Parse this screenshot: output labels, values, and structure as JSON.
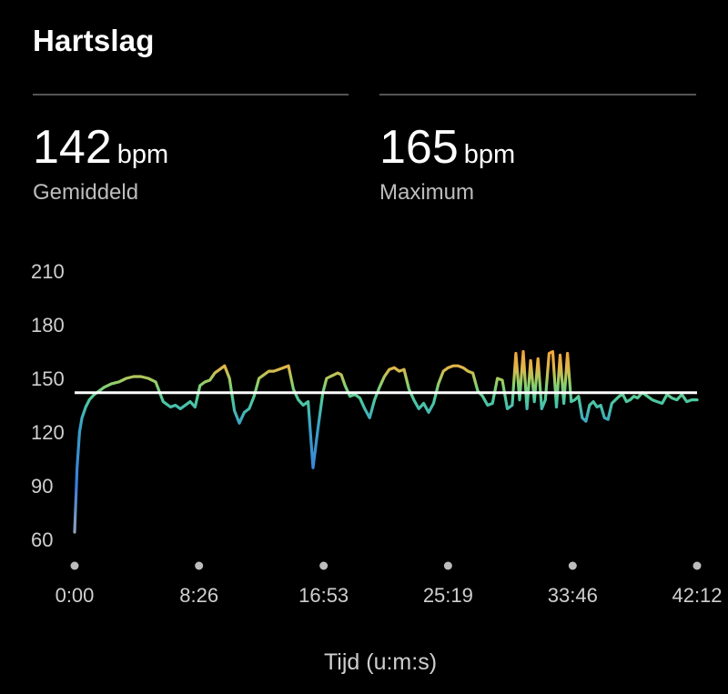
{
  "header": {
    "title": "Hartslag"
  },
  "stats": [
    {
      "value": "142",
      "unit": "bpm",
      "label": "Gemiddeld"
    },
    {
      "value": "165",
      "unit": "bpm",
      "label": "Maximum"
    }
  ],
  "colors": {
    "background": "#000000",
    "average_line": "#ffffff",
    "low": "#3b7ddd",
    "mid": "#4ec9a0",
    "high": "#f3a33c"
  },
  "chart_data": {
    "type": "line",
    "title": "",
    "xlabel": "Tijd (u:m:s)",
    "ylabel": "",
    "ylim": [
      60,
      210
    ],
    "yticks": [
      "60",
      "90",
      "120",
      "150",
      "180",
      "210"
    ],
    "xlim": [
      "0:00",
      "42:12"
    ],
    "xticks": [
      "0:00",
      "8:26",
      "16:53",
      "25:19",
      "33:46",
      "42:12"
    ],
    "grid": false,
    "average_line": 142,
    "series": [
      {
        "x": [
          "0:00",
          "0:10",
          "0:20",
          "0:30",
          "0:45",
          "1:00",
          "1:20",
          "1:40",
          "2:00",
          "2:30",
          "3:00",
          "3:30",
          "4:00",
          "4:30",
          "5:00",
          "5:30",
          "6:00",
          "6:30",
          "6:50",
          "7:10",
          "7:30",
          "7:50",
          "8:10",
          "8:30",
          "8:50",
          "9:10",
          "9:30",
          "9:50",
          "10:10",
          "10:30",
          "10:50",
          "11:10",
          "11:30",
          "11:50",
          "12:10",
          "12:30",
          "12:50",
          "13:10",
          "13:30",
          "13:50",
          "14:10",
          "14:30",
          "14:50",
          "15:10",
          "15:30",
          "15:50",
          "16:10",
          "16:30",
          "16:50",
          "17:05",
          "17:20",
          "17:35",
          "17:50",
          "18:05",
          "18:20",
          "18:40",
          "19:00",
          "19:20",
          "19:40",
          "20:00",
          "20:20",
          "20:40",
          "21:00",
          "21:20",
          "21:40",
          "22:00",
          "22:20",
          "22:40",
          "23:00",
          "23:20",
          "23:40",
          "24:00",
          "24:20",
          "24:40",
          "25:00",
          "25:20",
          "25:40",
          "26:00",
          "26:20",
          "26:40",
          "27:00",
          "27:20",
          "27:40",
          "28:00",
          "28:20",
          "28:40",
          "29:00",
          "29:20",
          "29:40",
          "29:55",
          "30:10",
          "30:25",
          "30:40",
          "30:55",
          "31:10",
          "31:25",
          "31:40",
          "31:55",
          "32:10",
          "32:25",
          "32:40",
          "32:55",
          "33:10",
          "33:25",
          "33:40",
          "33:55",
          "34:10",
          "34:25",
          "34:40",
          "34:55",
          "35:10",
          "35:25",
          "35:40",
          "35:55",
          "36:10",
          "36:25",
          "36:40",
          "36:55",
          "37:10",
          "37:25",
          "37:40",
          "37:55",
          "38:10",
          "38:30",
          "38:50",
          "39:10",
          "39:30",
          "39:50",
          "40:10",
          "40:30",
          "40:50",
          "41:10",
          "41:30",
          "41:50",
          "42:12"
        ],
        "values": [
          64,
          100,
          120,
          128,
          134,
          138,
          141,
          143,
          145,
          147,
          148,
          150,
          151,
          151,
          150,
          148,
          137,
          134,
          135,
          133,
          135,
          137,
          134,
          146,
          148,
          149,
          153,
          155,
          157,
          150,
          132,
          125,
          131,
          133,
          140,
          150,
          152,
          154,
          154,
          155,
          156,
          157,
          144,
          138,
          135,
          137,
          100,
          122,
          142,
          150,
          151,
          152,
          153,
          152,
          146,
          140,
          141,
          139,
          133,
          128,
          138,
          145,
          151,
          155,
          156,
          154,
          155,
          144,
          138,
          133,
          136,
          131,
          136,
          147,
          154,
          156,
          157,
          157,
          156,
          154,
          153,
          143,
          140,
          135,
          136,
          150,
          149,
          133,
          135,
          164,
          138,
          165,
          133,
          160,
          137,
          161,
          133,
          138,
          164,
          165,
          134,
          163,
          136,
          164,
          137,
          138,
          140,
          128,
          126,
          135,
          137,
          134,
          135,
          128,
          127,
          136,
          138,
          140,
          141,
          137,
          138,
          140,
          139,
          142,
          140,
          138,
          137,
          136,
          141,
          139,
          138,
          141,
          137,
          138,
          138
        ]
      }
    ]
  }
}
